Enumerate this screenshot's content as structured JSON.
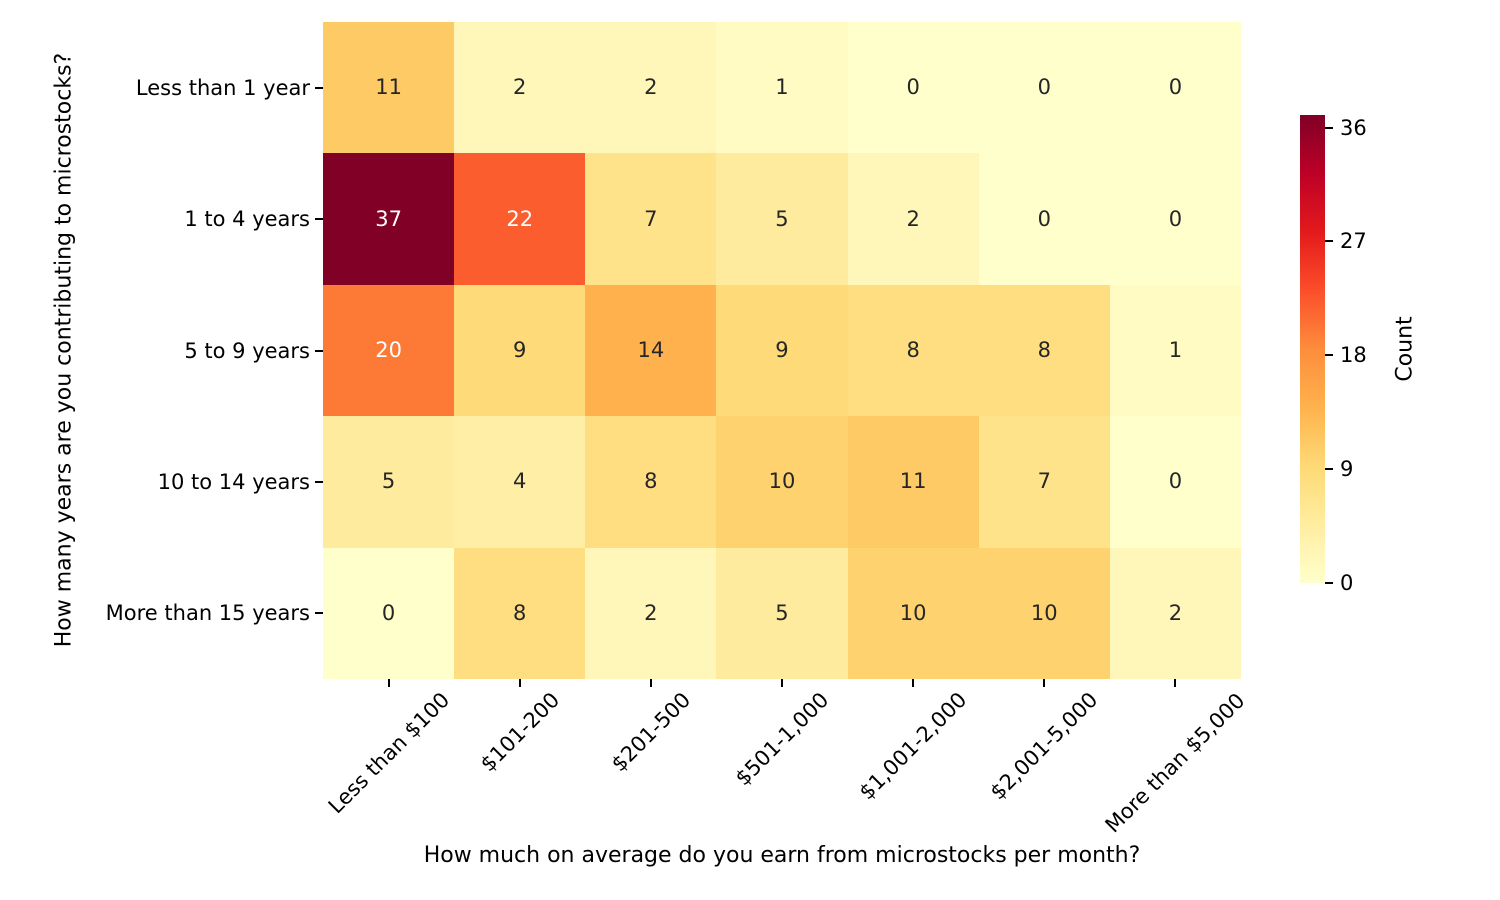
{
  "chart_data": {
    "type": "heatmap",
    "xlabel": "How much on average do you earn from microstocks per month?",
    "ylabel": "How many years are you contributing to microstocks?",
    "x_categories": [
      "Less than $100",
      "$101-200",
      "$201-500",
      "$501-1,000",
      "$1,001-2,000",
      "$2,001-5,000",
      "More than $5,000"
    ],
    "y_categories": [
      "Less than 1 year",
      "1 to 4 years",
      "5 to 9 years",
      "10 to 14 years",
      "More than 15 years"
    ],
    "values": [
      [
        11,
        2,
        2,
        1,
        0,
        0,
        0
      ],
      [
        37,
        22,
        7,
        5,
        2,
        0,
        0
      ],
      [
        20,
        9,
        14,
        9,
        8,
        8,
        1
      ],
      [
        5,
        4,
        8,
        10,
        11,
        7,
        0
      ],
      [
        0,
        8,
        2,
        5,
        10,
        10,
        2
      ]
    ],
    "annotated": true,
    "grid": false,
    "colorbar": {
      "label": "Count",
      "ticks": [
        0,
        9,
        18,
        27,
        36
      ],
      "vmin": 0,
      "vmax": 37,
      "position": "right"
    },
    "colormap": {
      "name": "YlOrRd",
      "stops": [
        "#ffffcc",
        "#ffeda0",
        "#fed976",
        "#feb24c",
        "#fd8d3c",
        "#fc4e2a",
        "#e31a1c",
        "#bd0026",
        "#800026"
      ]
    },
    "annotation_text_colors": {
      "dark": "#262626",
      "light": "#ffffff"
    }
  }
}
